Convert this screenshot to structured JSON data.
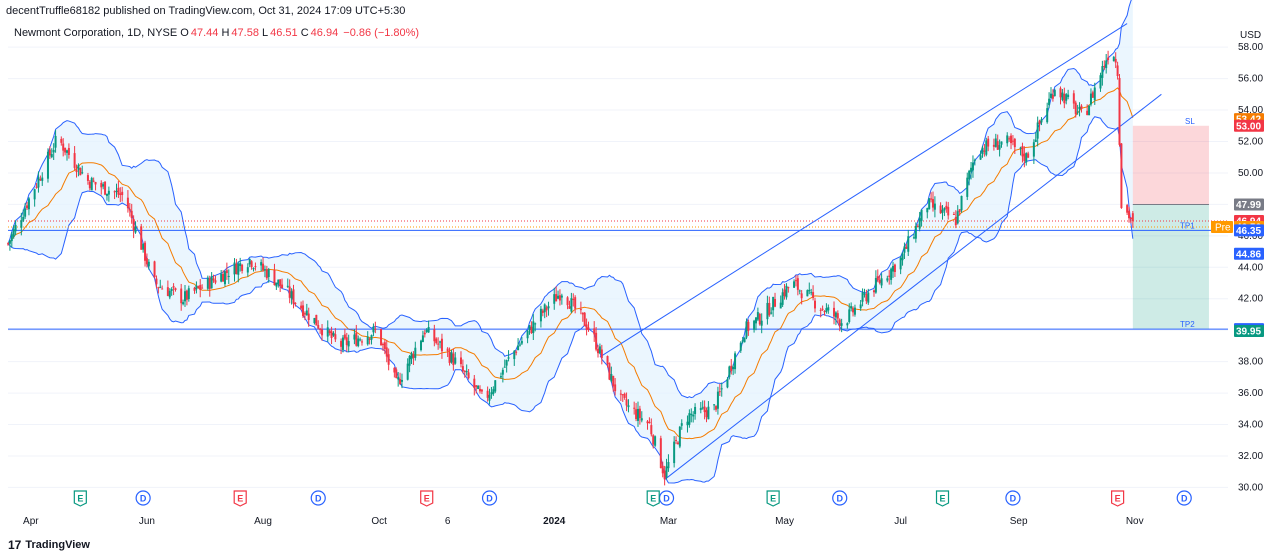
{
  "publish_line": "decentTruffle68182 published on TradingView.com, Oct 31, 2024 17:09 UTC+5:30",
  "legend": {
    "symbol": "Newmont Corporation, 1D, NYSE",
    "o_key": "O",
    "o": "47.44",
    "h_key": "H",
    "h": "47.58",
    "l_key": "L",
    "l": "46.51",
    "c_key": "C",
    "c": "46.94",
    "change": "−0.86 (−1.80%)"
  },
  "footer": {
    "logo": "17",
    "brand": "TradingView"
  },
  "chart_data": {
    "type": "candlestick",
    "currency": "USD",
    "ylim": [
      29.2,
      59.6
    ],
    "y_ticks": [
      "58.00",
      "56.00",
      "54.00",
      "52.00",
      "50.00",
      "48.00",
      "46.00",
      "44.00",
      "42.00",
      "40.00",
      "38.00",
      "36.00",
      "34.00",
      "32.00",
      "30.00"
    ],
    "x_ticks": [
      "Apr",
      "Jun",
      "Aug",
      "Oct",
      "6",
      "2024",
      "Mar",
      "May",
      "Jul",
      "Sep",
      "Nov"
    ],
    "price_path": [
      {
        "date": "2023-03-20",
        "price": 45.5
      },
      {
        "date": "2023-04-15",
        "price": 52.2
      },
      {
        "date": "2023-05-01",
        "price": 49.5
      },
      {
        "date": "2023-05-20",
        "price": 48.5
      },
      {
        "date": "2023-06-05",
        "price": 43.0
      },
      {
        "date": "2023-06-20",
        "price": 42.0
      },
      {
        "date": "2023-07-10",
        "price": 43.5
      },
      {
        "date": "2023-07-25",
        "price": 44.5
      },
      {
        "date": "2023-08-05",
        "price": 43.5
      },
      {
        "date": "2023-08-25",
        "price": 41.0
      },
      {
        "date": "2023-09-10",
        "price": 39.0
      },
      {
        "date": "2023-09-30",
        "price": 40.0
      },
      {
        "date": "2023-10-10",
        "price": 36.5
      },
      {
        "date": "2023-10-25",
        "price": 40.0
      },
      {
        "date": "2023-11-10",
        "price": 38.0
      },
      {
        "date": "2023-11-25",
        "price": 35.5
      },
      {
        "date": "2023-12-10",
        "price": 38.5
      },
      {
        "date": "2023-12-25",
        "price": 41.0
      },
      {
        "date": "2024-01-05",
        "price": 42.5
      },
      {
        "date": "2024-01-20",
        "price": 40.0
      },
      {
        "date": "2024-02-05",
        "price": 35.5
      },
      {
        "date": "2024-02-20",
        "price": 34.0
      },
      {
        "date": "2024-02-28",
        "price": 30.8
      },
      {
        "date": "2024-03-10",
        "price": 34.5
      },
      {
        "date": "2024-03-25",
        "price": 35.0
      },
      {
        "date": "2024-04-10",
        "price": 40.0
      },
      {
        "date": "2024-04-20",
        "price": 41.0
      },
      {
        "date": "2024-05-05",
        "price": 43.0
      },
      {
        "date": "2024-05-20",
        "price": 41.5
      },
      {
        "date": "2024-06-01",
        "price": 40.5
      },
      {
        "date": "2024-06-15",
        "price": 42.5
      },
      {
        "date": "2024-07-01",
        "price": 44.5
      },
      {
        "date": "2024-07-15",
        "price": 48.0
      },
      {
        "date": "2024-07-30",
        "price": 47.0
      },
      {
        "date": "2024-08-10",
        "price": 51.5
      },
      {
        "date": "2024-08-25",
        "price": 52.0
      },
      {
        "date": "2024-09-05",
        "price": 51.0
      },
      {
        "date": "2024-09-20",
        "price": 55.5
      },
      {
        "date": "2024-10-05",
        "price": 53.5
      },
      {
        "date": "2024-10-20",
        "price": 58.2
      },
      {
        "date": "2024-10-23",
        "price": 56.5
      },
      {
        "date": "2024-10-25",
        "price": 48.0
      },
      {
        "date": "2024-10-31",
        "price": 46.94
      }
    ],
    "series": [
      {
        "name": "Bollinger Bands (basis)",
        "color": "#f57c00"
      },
      {
        "name": "Bollinger Bands (bands)",
        "color": "#2962ff",
        "fill": "#e3f2fd"
      }
    ],
    "channel": {
      "upper": [
        {
          "date": "2024-01-25",
          "price": 38.3
        },
        {
          "date": "2024-10-28",
          "price": 59.5
        }
      ],
      "lower": [
        {
          "date": "2024-02-28",
          "price": 30.5
        },
        {
          "date": "2024-11-15",
          "price": 55.0
        }
      ]
    },
    "horizontal_lines": [
      {
        "label": "TP1",
        "price": 46.35,
        "color": "#2962ff"
      },
      {
        "label": "TP2",
        "price": 40.07,
        "color": "#2962ff"
      }
    ],
    "trade_box": {
      "entry": 47.99,
      "stop": 53.0,
      "stop_label": "SL",
      "target": 40.07,
      "start_date": "2024-10-31",
      "end_date": "2024-12-10"
    },
    "price_labels": [
      {
        "text": "53.42",
        "price": 53.42,
        "bg": "#f57c00"
      },
      {
        "text": "53.00",
        "price": 53.0,
        "bg": "#f23645"
      },
      {
        "text": "47.99",
        "price": 47.99,
        "bg": "#787b86"
      },
      {
        "text": "46.94",
        "price": 46.94,
        "bg": "#f23645"
      },
      {
        "text": "46.56",
        "price": 46.56,
        "bg": "#ff9800",
        "tag": "Pre"
      },
      {
        "text": "46.35",
        "price": 46.35,
        "bg": "#2962ff"
      },
      {
        "text": "44.86",
        "price": 44.86,
        "bg": "#2962ff"
      },
      {
        "text": "40.07",
        "price": 40.07,
        "bg": "#2962ff"
      },
      {
        "text": "39.95",
        "price": 39.95,
        "bg": "#089981"
      }
    ],
    "events": [
      {
        "type": "E",
        "date": "2023-04-27",
        "color": "#089981"
      },
      {
        "type": "D",
        "date": "2023-05-30",
        "color": "#2962ff"
      },
      {
        "type": "E",
        "date": "2023-07-20",
        "color": "#f23645"
      },
      {
        "type": "D",
        "date": "2023-08-30",
        "color": "#2962ff"
      },
      {
        "type": "E",
        "date": "2023-10-26",
        "color": "#f23645"
      },
      {
        "type": "D",
        "date": "2023-11-28",
        "color": "#2962ff"
      },
      {
        "type": "D",
        "date": "2024-02-29",
        "color": "#2962ff"
      },
      {
        "type": "E",
        "date": "2024-02-22",
        "color": "#089981"
      },
      {
        "type": "E",
        "date": "2024-04-25",
        "color": "#089981"
      },
      {
        "type": "D",
        "date": "2024-05-30",
        "color": "#2962ff"
      },
      {
        "type": "E",
        "date": "2024-07-23",
        "color": "#089981"
      },
      {
        "type": "D",
        "date": "2024-08-29",
        "color": "#2962ff"
      },
      {
        "type": "E",
        "date": "2024-10-23",
        "color": "#f23645"
      },
      {
        "type": "D",
        "date": "2024-11-27",
        "color": "#2962ff"
      }
    ],
    "colors": {
      "up": "#089981",
      "down": "#f23645",
      "grid": "#f0f3fa",
      "axis_text": "#131722"
    }
  }
}
